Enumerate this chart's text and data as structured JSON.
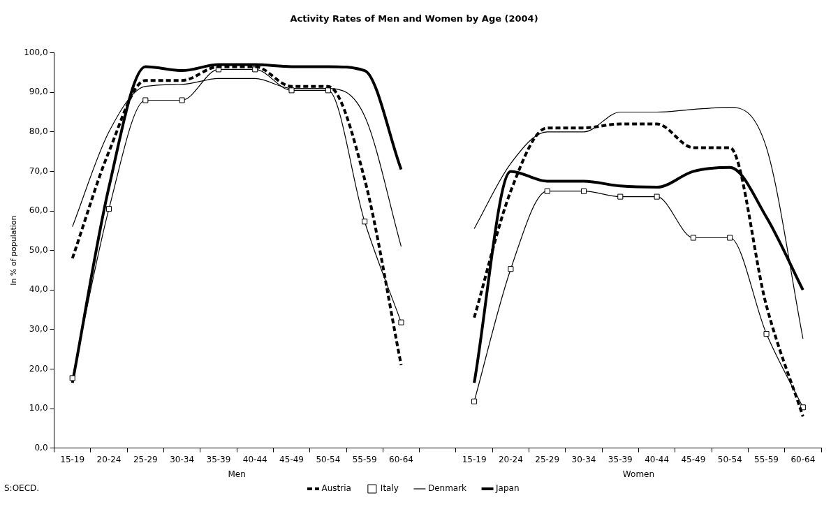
{
  "chart_data": {
    "type": "line",
    "title": "Activity Rates of Men and Women by Age (2004)",
    "ylabel": "In % of population",
    "categories": [
      "15-19",
      "20-24",
      "25-29",
      "30-34",
      "35-39",
      "40-44",
      "45-49",
      "50-54",
      "55-59",
      "60-64",
      null,
      "15-19",
      "20-24",
      "25-29",
      "30-34",
      "35-39",
      "40-44",
      "45-49",
      "50-54",
      "55-59",
      "60-64"
    ],
    "ylim": [
      0,
      100
    ],
    "yticks": [
      {
        "value": 0,
        "label": "0,0"
      },
      {
        "value": 10,
        "label": "10,0"
      },
      {
        "value": 20,
        "label": "20,0"
      },
      {
        "value": 30,
        "label": "30,0"
      },
      {
        "value": 40,
        "label": "40,0"
      },
      {
        "value": 50,
        "label": "50,0"
      },
      {
        "value": 60,
        "label": "60,0"
      },
      {
        "value": 70,
        "label": "70,0"
      },
      {
        "value": 80,
        "label": "80,0"
      },
      {
        "value": 90,
        "label": "90,0"
      },
      {
        "value": 100,
        "label": "100,0"
      }
    ],
    "series": [
      {
        "name": "Austria",
        "color": "#000000",
        "line_style": "dashed",
        "marker": "none",
        "values": [
          48,
          75,
          93,
          93,
          96.5,
          96.5,
          91.5,
          91.5,
          68,
          21,
          null,
          33,
          65,
          81,
          81,
          82,
          82,
          76,
          76,
          36,
          8
        ]
      },
      {
        "name": "Italy",
        "color": "#000000",
        "line_style": "solid",
        "marker": "square",
        "values": [
          17.7,
          60.5,
          88,
          88,
          95.8,
          95.8,
          90.5,
          90.5,
          57.3,
          31.8,
          null,
          11.8,
          45.3,
          65,
          65,
          63.6,
          63.6,
          53.2,
          53.2,
          28.9,
          10.3
        ]
      },
      {
        "name": "Denmark",
        "color": "#000000",
        "line_style": "solid",
        "marker": "none",
        "values": [
          56,
          80,
          91.5,
          92,
          93.5,
          93.5,
          91,
          91,
          84,
          51,
          null,
          55.5,
          72,
          80,
          80,
          85,
          85,
          85.7,
          86.2,
          76,
          27.7
        ]
      },
      {
        "name": "Japan",
        "color": "#000000",
        "line_style": "solid",
        "marker": "none",
        "values": [
          16.5,
          66,
          96.5,
          95.5,
          97,
          97,
          96.5,
          96.5,
          95.5,
          70.5,
          null,
          16.5,
          70,
          67.5,
          67.5,
          66.3,
          66,
          70,
          71,
          58.4,
          40
        ]
      }
    ],
    "legend": "bottom",
    "grid": false,
    "annotations": [
      "Men",
      "Women",
      "S:OECD."
    ]
  }
}
